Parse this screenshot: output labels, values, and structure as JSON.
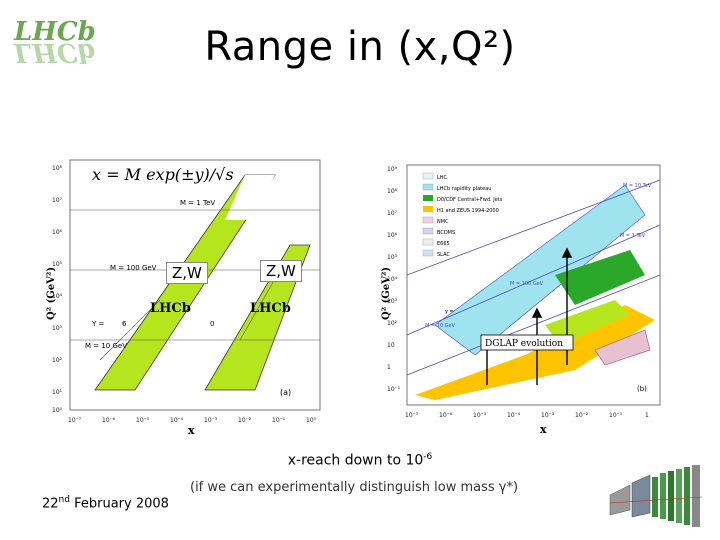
{
  "header": {
    "logo_text": "LHCb",
    "title": "Range in (x,Q²)"
  },
  "left_plot": {
    "formula": "x = M exp(±y)/√s",
    "label_m1tev": "M = 1 TeV",
    "label_m100": "M = 100 GeV",
    "label_m10": "M = 10 GeV",
    "label_y": "Y =",
    "label_6": "6",
    "label_0": "0",
    "zw_left": "Z,W",
    "zw_right": "Z,W",
    "lhcb_left": "LHCb",
    "lhcb_right": "LHCb",
    "panel": "(a)",
    "ylabel": "Q² (GeV²)",
    "xlabel": "x",
    "y_ticks": [
      "10⁸",
      "10⁷",
      "10⁶",
      "10⁵",
      "10⁴",
      "10³",
      "10²",
      "10¹",
      "10⁰"
    ],
    "x_ticks": [
      "10⁻⁷",
      "10⁻⁶",
      "10⁻⁵",
      "10⁻⁴",
      "10⁻³",
      "10⁻²",
      "10⁻¹",
      "10⁰"
    ]
  },
  "right_plot": {
    "legend": [
      "LHC",
      "LHCb rapidity plateau",
      "D0/CDF Central+Fwd. Jets",
      "H1 and ZEUS 1994-2000",
      "NMC",
      "BCDMS",
      "E665",
      "SLAC"
    ],
    "label_m10tev": "M = 10 TeV",
    "label_m1tev": "M = 1 TeV",
    "label_m100": "M = 100 GeV",
    "label_m10": "M = 10 GeV",
    "label_y": "y =",
    "dglap": "DGLAP evolution",
    "panel": "(b)",
    "ylabel": "Q² (GeV²)",
    "xlabel": "x",
    "y_ticks": [
      "10⁹",
      "10⁸",
      "10⁷",
      "10⁶",
      "10⁵",
      "10⁴",
      "10³",
      "10²",
      "10",
      "1",
      "10⁻¹"
    ],
    "x_ticks": [
      "10⁻⁷",
      "10⁻⁶",
      "10⁻⁵",
      "10⁻⁴",
      "10⁻³",
      "10⁻²",
      "10⁻¹",
      "1"
    ]
  },
  "footer": {
    "xreach_text": "x-reach down to 10",
    "xreach_exp": "-6",
    "note": "(if we can experimentally distinguish low mass γ*)",
    "date_day": "22",
    "date_suffix": "nd",
    "date_rest": " February 2008"
  },
  "colors": {
    "green_band": "#b5e61d",
    "cyan": "#9fe3ee",
    "dark_green": "#2aa82a",
    "yellow": "#ffc400",
    "blue_line": "#4a4ac0"
  }
}
